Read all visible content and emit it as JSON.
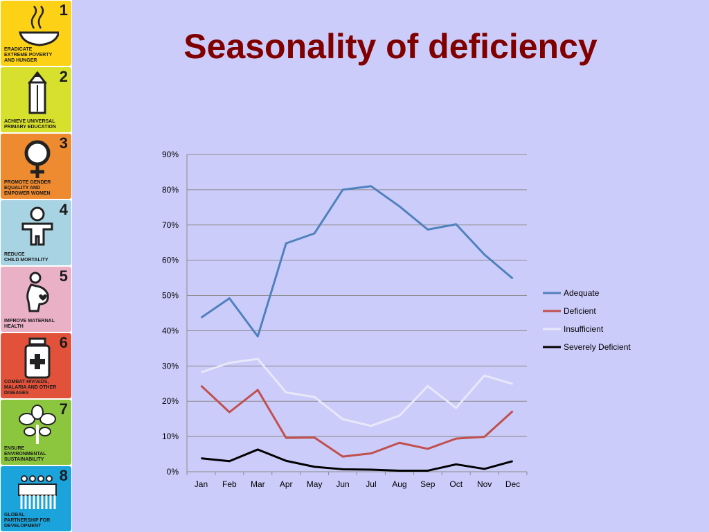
{
  "page": {
    "title": "Seasonality of deficiency"
  },
  "sidebar": {
    "goals": [
      {
        "number": "1",
        "text": "ERADICATE\nEXTREME POVERTY\nAND HUNGER",
        "color": "#fcd116",
        "icon": "bowl-icon"
      },
      {
        "number": "2",
        "text": "ACHIEVE UNIVERSAL\nPRIMARY EDUCATION",
        "color": "#d7e02c",
        "icon": "pencil-icon"
      },
      {
        "number": "3",
        "text": "PROMOTE GENDER\nEQUALITY AND\nEMPOWER WOMEN",
        "color": "#ee8a2f",
        "icon": "female-symbol-icon"
      },
      {
        "number": "4",
        "text": "REDUCE\nCHILD MORTALITY",
        "color": "#a8d3e2",
        "icon": "child-icon"
      },
      {
        "number": "5",
        "text": "IMPROVE MATERNAL\nHEALTH",
        "color": "#eab0c6",
        "icon": "pregnant-woman-icon"
      },
      {
        "number": "6",
        "text": "COMBAT HIV/AIDS,\nMALARIA AND OTHER\nDISEASES",
        "color": "#e2523b",
        "icon": "medicine-bottle-icon"
      },
      {
        "number": "7",
        "text": "ENSURE\nENVIRONMENTAL\nSUSTAINABILITY",
        "color": "#8cc63f",
        "icon": "plant-icon"
      },
      {
        "number": "8",
        "text": "GLOBAL\nPARTNERSHIP FOR\nDEVELOPMENT",
        "color": "#1ba3dc",
        "icon": "people-group-icon"
      }
    ]
  },
  "chart_data": {
    "type": "line",
    "title": "",
    "xlabel": "",
    "ylabel": "",
    "categories": [
      "Jan",
      "Feb",
      "Mar",
      "Apr",
      "May",
      "Jun",
      "Jul",
      "Aug",
      "Sep",
      "Oct",
      "Nov",
      "Dec"
    ],
    "ylim": [
      0,
      90
    ],
    "yticks": [
      0,
      10,
      20,
      30,
      40,
      50,
      60,
      70,
      80,
      90
    ],
    "ytick_labels": [
      "0%",
      "10%",
      "20%",
      "30%",
      "40%",
      "50%",
      "60%",
      "70%",
      "80%",
      "90%"
    ],
    "grid": true,
    "legend_position": "right",
    "series": [
      {
        "name": "Adequate",
        "color": "#4f81bd",
        "values": [
          43.7,
          49.2,
          38.4,
          64.8,
          67.6,
          80.0,
          81.0,
          75.3,
          68.7,
          70.2,
          61.6,
          54.8
        ]
      },
      {
        "name": "Deficient",
        "color": "#c0504d",
        "values": [
          24.4,
          16.9,
          23.2,
          9.6,
          9.7,
          4.3,
          5.2,
          8.2,
          6.5,
          9.4,
          9.9,
          17.2
        ]
      },
      {
        "name": "Insufficient",
        "color": "#e8e8f8",
        "values": [
          28.2,
          30.9,
          32.0,
          22.5,
          21.2,
          14.9,
          13.0,
          15.9,
          24.3,
          18.1,
          27.3,
          24.9
        ]
      },
      {
        "name": "Severely Deficient",
        "color": "#000000",
        "values": [
          3.8,
          3.0,
          6.3,
          3.1,
          1.4,
          0.7,
          0.6,
          0.3,
          0.3,
          2.1,
          0.8,
          3.0
        ]
      }
    ]
  }
}
